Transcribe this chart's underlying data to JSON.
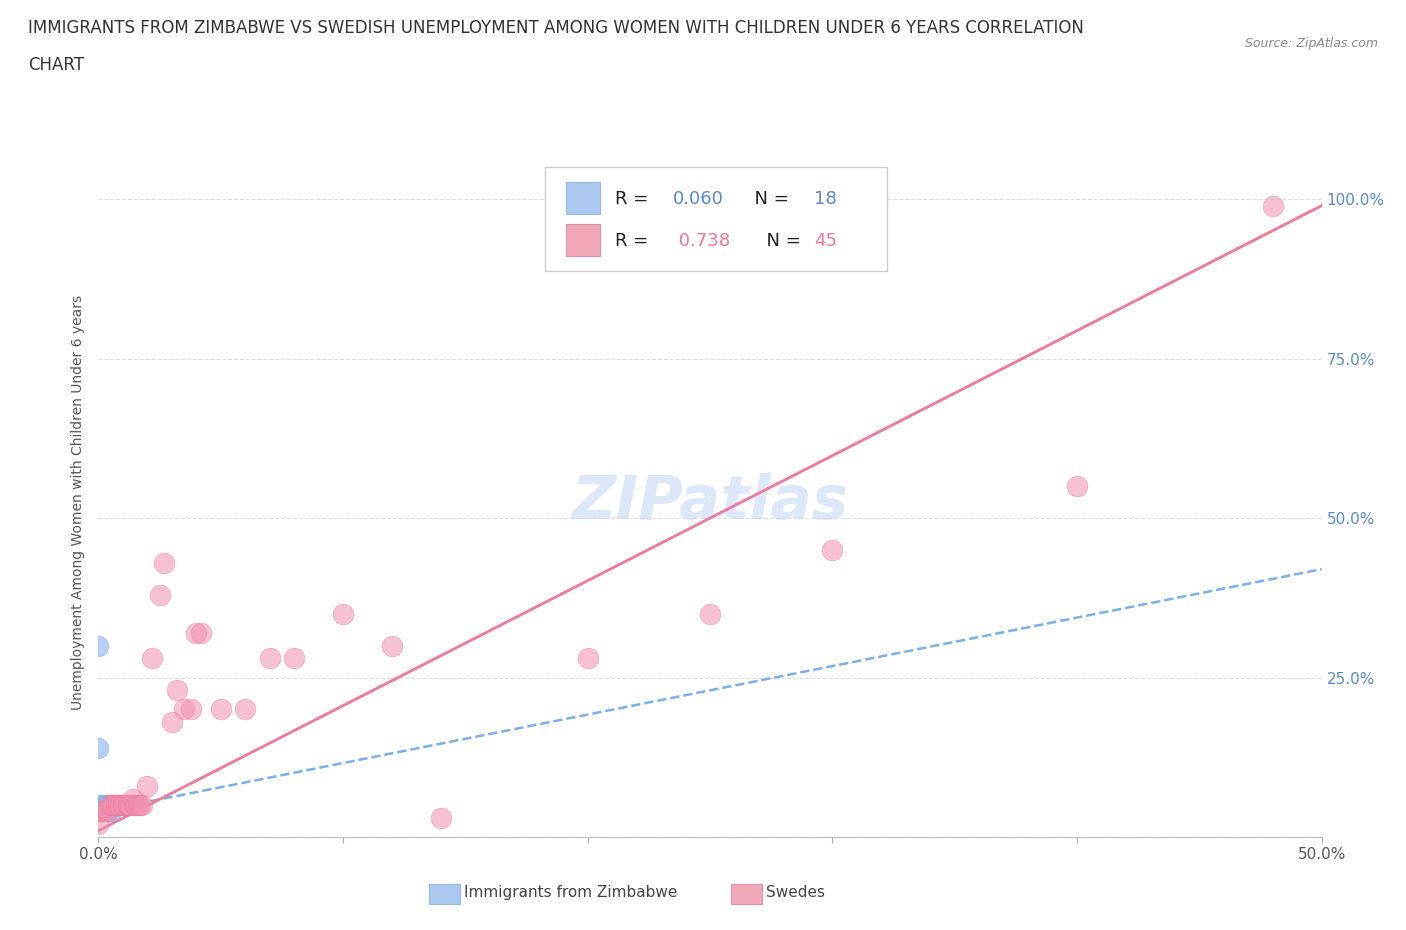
{
  "title_line1": "IMMIGRANTS FROM ZIMBABWE VS SWEDISH UNEMPLOYMENT AMONG WOMEN WITH CHILDREN UNDER 6 YEARS CORRELATION",
  "title_line2": "CHART",
  "source": "Source: ZipAtlas.com",
  "ylabel": "Unemployment Among Women with Children Under 6 years",
  "xlim": [
    0.0,
    0.5
  ],
  "ylim": [
    0.0,
    1.05
  ],
  "legend1_color": "#aac8f0",
  "legend2_color": "#f0a8b8",
  "watermark": "ZIPatlas",
  "blue_color": "#7ab0e8",
  "pink_color": "#f07898",
  "blue_dot_color": "#90b8f0",
  "pink_dot_color": "#f090b0",
  "scatter_blue": [
    [
      0.0,
      0.3
    ],
    [
      0.0,
      0.14
    ],
    [
      0.001,
      0.05
    ],
    [
      0.001,
      0.04
    ],
    [
      0.001,
      0.04
    ],
    [
      0.002,
      0.04
    ],
    [
      0.002,
      0.05
    ],
    [
      0.003,
      0.05
    ],
    [
      0.003,
      0.04
    ],
    [
      0.003,
      0.05
    ],
    [
      0.004,
      0.04
    ],
    [
      0.004,
      0.05
    ],
    [
      0.005,
      0.04
    ],
    [
      0.005,
      0.05
    ],
    [
      0.006,
      0.05
    ],
    [
      0.007,
      0.05
    ],
    [
      0.008,
      0.05
    ],
    [
      0.01,
      0.05
    ]
  ],
  "scatter_pink": [
    [
      0.0,
      0.02
    ],
    [
      0.001,
      0.04
    ],
    [
      0.002,
      0.04
    ],
    [
      0.003,
      0.04
    ],
    [
      0.004,
      0.04
    ],
    [
      0.005,
      0.05
    ],
    [
      0.005,
      0.05
    ],
    [
      0.006,
      0.05
    ],
    [
      0.007,
      0.05
    ],
    [
      0.008,
      0.05
    ],
    [
      0.009,
      0.05
    ],
    [
      0.01,
      0.05
    ],
    [
      0.01,
      0.05
    ],
    [
      0.011,
      0.05
    ],
    [
      0.012,
      0.05
    ],
    [
      0.012,
      0.05
    ],
    [
      0.013,
      0.05
    ],
    [
      0.014,
      0.06
    ],
    [
      0.015,
      0.05
    ],
    [
      0.015,
      0.05
    ],
    [
      0.016,
      0.05
    ],
    [
      0.017,
      0.05
    ],
    [
      0.018,
      0.05
    ],
    [
      0.02,
      0.08
    ],
    [
      0.022,
      0.28
    ],
    [
      0.025,
      0.38
    ],
    [
      0.027,
      0.43
    ],
    [
      0.03,
      0.18
    ],
    [
      0.032,
      0.23
    ],
    [
      0.035,
      0.2
    ],
    [
      0.038,
      0.2
    ],
    [
      0.04,
      0.32
    ],
    [
      0.042,
      0.32
    ],
    [
      0.05,
      0.2
    ],
    [
      0.06,
      0.2
    ],
    [
      0.07,
      0.28
    ],
    [
      0.08,
      0.28
    ],
    [
      0.1,
      0.35
    ],
    [
      0.12,
      0.3
    ],
    [
      0.14,
      0.03
    ],
    [
      0.2,
      0.28
    ],
    [
      0.25,
      0.35
    ],
    [
      0.3,
      0.45
    ],
    [
      0.4,
      0.55
    ],
    [
      0.48,
      0.99
    ]
  ],
  "blue_trendline_x": [
    0.0,
    0.5
  ],
  "blue_trendline_y": [
    0.04,
    0.42
  ],
  "pink_trendline_x": [
    0.0,
    0.5
  ],
  "pink_trendline_y": [
    0.01,
    0.99
  ],
  "title_fontsize": 12,
  "axis_label_fontsize": 10,
  "tick_fontsize": 11,
  "legend_fontsize": 13,
  "grid_color": "#dddddd",
  "tick_color": "#5a8ac6"
}
